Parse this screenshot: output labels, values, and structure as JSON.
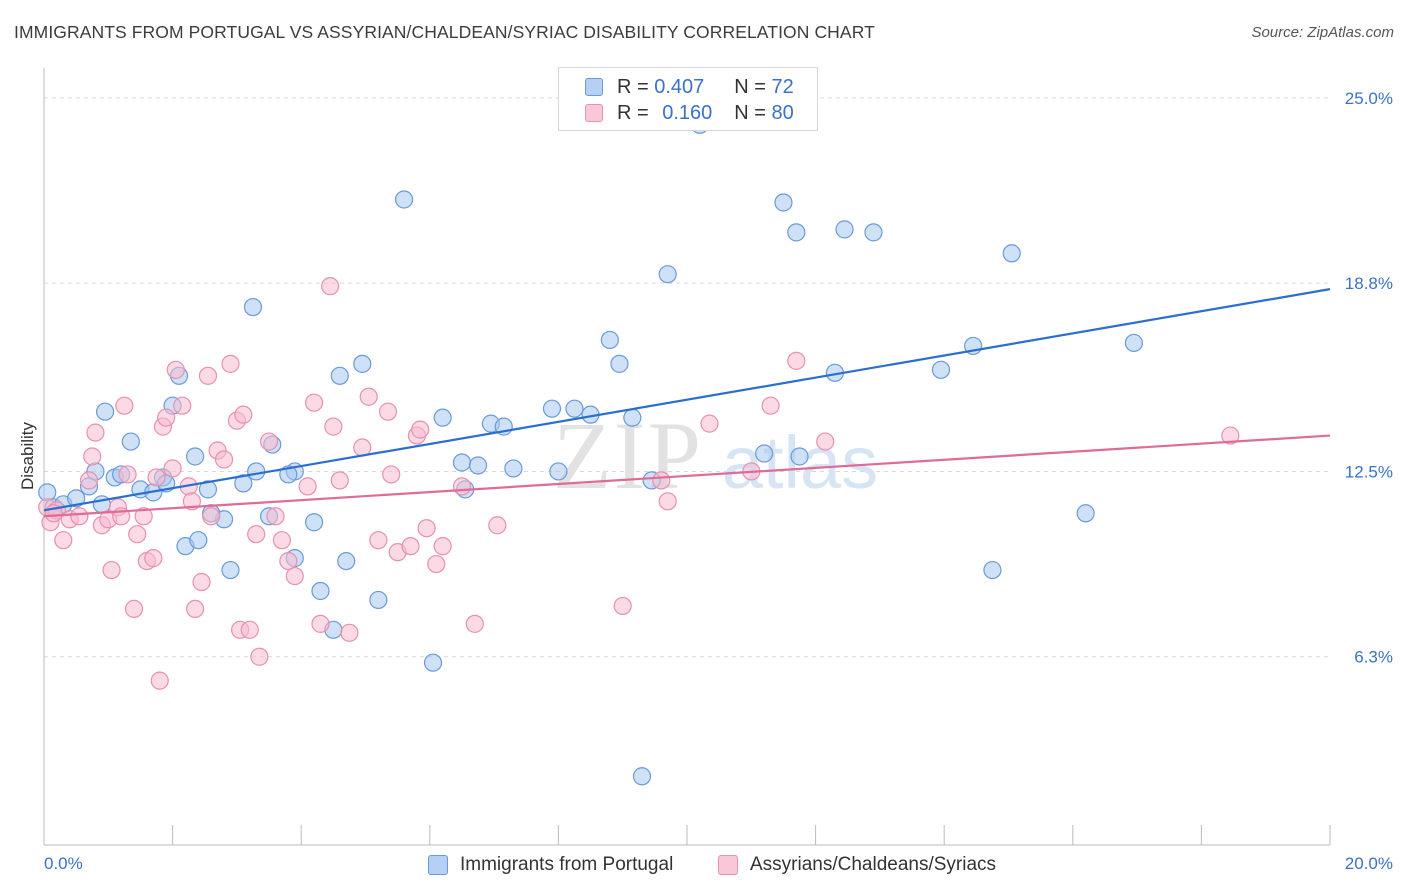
{
  "title": "IMMIGRANTS FROM PORTUGAL VS ASSYRIAN/CHALDEAN/SYRIAC DISABILITY CORRELATION CHART",
  "source": "Source: ZipAtlas.com",
  "watermark": {
    "zip": "ZIP",
    "atlas": "atlas"
  },
  "legend": {
    "r_label": "R =",
    "n_label": "N =",
    "series1": {
      "r": "0.407",
      "n": "72"
    },
    "series2": {
      "r": "0.160",
      "n": "80"
    }
  },
  "chart_data": {
    "type": "scatter",
    "xlabel": "",
    "ylabel": "Disability",
    "xlim": [
      0,
      20
    ],
    "ylim": [
      0,
      26
    ],
    "x_tick_labels": [
      "0.0%",
      "20.0%"
    ],
    "y_ticks": [
      6.3,
      12.5,
      18.8,
      25.0
    ],
    "y_tick_labels": [
      "6.3%",
      "12.5%",
      "18.8%",
      "25.0%"
    ],
    "grid": true,
    "legend_position": "top-center",
    "colors": {
      "series1_fill": "#a8c8f0",
      "series1_stroke": "#6a9ad8",
      "series1_line": "#2a6fd0",
      "series2_fill": "#f8bcd0",
      "series2_stroke": "#e890b0",
      "series2_line": "#e06a98",
      "axis_text": "#3a72c4",
      "grid": "#d9d9d9"
    },
    "series": [
      {
        "name": "Immigrants from Portugal",
        "trend": {
          "x": [
            0,
            20
          ],
          "y": [
            11.2,
            18.6
          ]
        },
        "points": [
          [
            0.05,
            11.8
          ],
          [
            0.15,
            11.3
          ],
          [
            0.3,
            11.4
          ],
          [
            0.5,
            11.6
          ],
          [
            0.7,
            12.0
          ],
          [
            0.8,
            12.5
          ],
          [
            0.95,
            14.5
          ],
          [
            1.1,
            12.3
          ],
          [
            1.2,
            12.4
          ],
          [
            1.35,
            13.5
          ],
          [
            1.5,
            11.9
          ],
          [
            1.7,
            11.8
          ],
          [
            1.85,
            12.3
          ],
          [
            2.0,
            14.7
          ],
          [
            2.1,
            15.7
          ],
          [
            2.2,
            10.0
          ],
          [
            2.4,
            10.2
          ],
          [
            2.35,
            13.0
          ],
          [
            2.55,
            11.9
          ],
          [
            2.8,
            10.9
          ],
          [
            2.9,
            9.2
          ],
          [
            3.1,
            12.1
          ],
          [
            3.25,
            18.0
          ],
          [
            3.3,
            12.5
          ],
          [
            3.5,
            11.0
          ],
          [
            3.55,
            13.4
          ],
          [
            3.9,
            12.5
          ],
          [
            3.9,
            9.6
          ],
          [
            4.2,
            10.8
          ],
          [
            4.3,
            8.5
          ],
          [
            4.5,
            7.2
          ],
          [
            4.6,
            15.7
          ],
          [
            4.7,
            9.5
          ],
          [
            4.95,
            16.1
          ],
          [
            5.2,
            8.2
          ],
          [
            5.6,
            21.6
          ],
          [
            6.05,
            6.1
          ],
          [
            6.2,
            14.3
          ],
          [
            6.5,
            12.8
          ],
          [
            6.55,
            11.9
          ],
          [
            6.75,
            12.7
          ],
          [
            6.95,
            14.1
          ],
          [
            7.15,
            14.0
          ],
          [
            7.3,
            12.6
          ],
          [
            7.9,
            14.6
          ],
          [
            8.0,
            12.5
          ],
          [
            8.25,
            14.6
          ],
          [
            8.5,
            14.4
          ],
          [
            8.8,
            16.9
          ],
          [
            8.95,
            16.1
          ],
          [
            9.15,
            14.3
          ],
          [
            9.3,
            2.3
          ],
          [
            9.45,
            12.2
          ],
          [
            9.7,
            19.1
          ],
          [
            10.2,
            24.1
          ],
          [
            11.2,
            13.1
          ],
          [
            11.5,
            21.5
          ],
          [
            11.7,
            20.5
          ],
          [
            11.75,
            13.0
          ],
          [
            12.3,
            15.8
          ],
          [
            12.45,
            20.6
          ],
          [
            12.9,
            20.5
          ],
          [
            13.95,
            15.9
          ],
          [
            14.45,
            16.7
          ],
          [
            14.75,
            9.2
          ],
          [
            15.05,
            19.8
          ],
          [
            16.2,
            11.1
          ],
          [
            16.95,
            16.8
          ],
          [
            0.9,
            11.4
          ],
          [
            1.9,
            12.1
          ],
          [
            3.8,
            12.4
          ],
          [
            2.6,
            11.1
          ]
        ]
      },
      {
        "name": "Assyrians/Chaldeans/Syriacs",
        "trend": {
          "x": [
            0,
            20
          ],
          "y": [
            11.0,
            13.7
          ]
        },
        "points": [
          [
            0.05,
            11.3
          ],
          [
            0.1,
            10.8
          ],
          [
            0.2,
            11.2
          ],
          [
            0.3,
            10.2
          ],
          [
            0.4,
            10.9
          ],
          [
            0.55,
            11.0
          ],
          [
            0.7,
            12.2
          ],
          [
            0.75,
            13.0
          ],
          [
            0.8,
            13.8
          ],
          [
            0.9,
            10.7
          ],
          [
            1.0,
            10.9
          ],
          [
            1.05,
            9.2
          ],
          [
            1.15,
            11.3
          ],
          [
            1.25,
            14.7
          ],
          [
            1.3,
            12.4
          ],
          [
            1.4,
            7.9
          ],
          [
            1.45,
            10.4
          ],
          [
            1.55,
            11.0
          ],
          [
            1.6,
            9.5
          ],
          [
            1.7,
            9.6
          ],
          [
            1.75,
            12.3
          ],
          [
            1.8,
            5.5
          ],
          [
            1.85,
            14.0
          ],
          [
            1.9,
            14.3
          ],
          [
            2.0,
            12.6
          ],
          [
            2.05,
            15.9
          ],
          [
            2.15,
            14.7
          ],
          [
            2.25,
            12.0
          ],
          [
            2.3,
            11.5
          ],
          [
            2.35,
            7.9
          ],
          [
            2.45,
            8.8
          ],
          [
            2.55,
            15.7
          ],
          [
            2.6,
            11.0
          ],
          [
            2.7,
            13.2
          ],
          [
            2.8,
            12.9
          ],
          [
            2.9,
            16.1
          ],
          [
            3.0,
            14.2
          ],
          [
            3.05,
            7.2
          ],
          [
            3.1,
            14.4
          ],
          [
            3.2,
            7.2
          ],
          [
            3.3,
            10.4
          ],
          [
            3.35,
            6.3
          ],
          [
            3.5,
            13.5
          ],
          [
            3.6,
            11.0
          ],
          [
            3.7,
            10.2
          ],
          [
            3.8,
            9.5
          ],
          [
            3.9,
            9.0
          ],
          [
            4.1,
            12.0
          ],
          [
            4.2,
            14.8
          ],
          [
            4.3,
            7.4
          ],
          [
            4.45,
            18.7
          ],
          [
            4.5,
            14.0
          ],
          [
            4.6,
            12.2
          ],
          [
            4.75,
            7.1
          ],
          [
            4.95,
            13.3
          ],
          [
            5.05,
            15.0
          ],
          [
            5.2,
            10.2
          ],
          [
            5.35,
            14.5
          ],
          [
            5.4,
            12.4
          ],
          [
            5.5,
            9.8
          ],
          [
            5.7,
            10.0
          ],
          [
            5.8,
            13.7
          ],
          [
            5.85,
            13.9
          ],
          [
            5.95,
            10.6
          ],
          [
            6.1,
            9.4
          ],
          [
            6.2,
            10.0
          ],
          [
            6.5,
            12.0
          ],
          [
            6.7,
            7.4
          ],
          [
            7.05,
            10.7
          ],
          [
            9.0,
            8.0
          ],
          [
            9.6,
            12.2
          ],
          [
            9.7,
            11.5
          ],
          [
            10.35,
            14.1
          ],
          [
            11.0,
            12.5
          ],
          [
            11.3,
            14.7
          ],
          [
            11.7,
            16.2
          ],
          [
            12.15,
            13.5
          ],
          [
            18.45,
            13.7
          ],
          [
            0.15,
            11.1
          ],
          [
            1.2,
            11.0
          ]
        ]
      }
    ]
  }
}
